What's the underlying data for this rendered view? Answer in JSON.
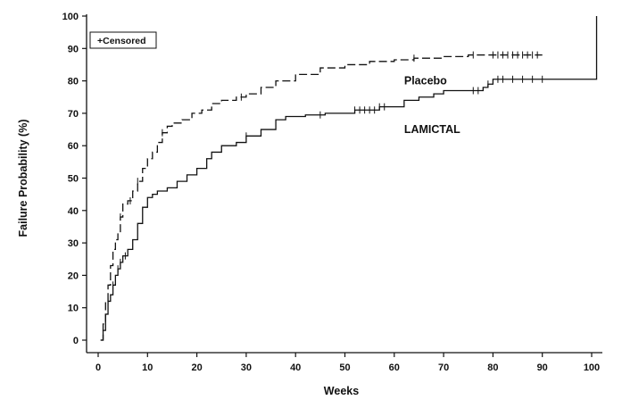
{
  "chart_data": {
    "type": "line",
    "title": "",
    "xlabel": "Weeks",
    "ylabel": "Failure Probability (%)",
    "xlim": [
      0,
      100
    ],
    "ylim": [
      0,
      100
    ],
    "x_ticks": [
      0,
      10,
      20,
      30,
      40,
      50,
      60,
      70,
      80,
      90,
      100
    ],
    "y_ticks": [
      0,
      10,
      20,
      30,
      40,
      50,
      60,
      70,
      80,
      90,
      100
    ],
    "grid": false,
    "legend": {
      "text": "+Censored",
      "placement": "top-left"
    },
    "series": [
      {
        "name": "Placebo",
        "line_style": "dashed",
        "step": true,
        "points": [
          [
            0.5,
            0
          ],
          [
            1,
            5
          ],
          [
            1.5,
            12
          ],
          [
            2,
            17
          ],
          [
            2.5,
            23
          ],
          [
            3,
            28
          ],
          [
            3.5,
            31
          ],
          [
            4,
            33
          ],
          [
            4.5,
            38
          ],
          [
            5,
            42
          ],
          [
            6,
            43
          ],
          [
            7,
            46
          ],
          [
            8,
            49
          ],
          [
            9,
            53
          ],
          [
            10,
            56
          ],
          [
            11,
            58
          ],
          [
            12,
            61
          ],
          [
            13,
            64
          ],
          [
            14,
            66
          ],
          [
            15,
            67
          ],
          [
            17,
            68
          ],
          [
            19,
            70
          ],
          [
            21,
            71
          ],
          [
            23,
            73
          ],
          [
            25,
            74
          ],
          [
            28,
            75
          ],
          [
            30,
            76
          ],
          [
            33,
            78
          ],
          [
            36,
            80
          ],
          [
            40,
            82
          ],
          [
            45,
            84
          ],
          [
            50,
            85
          ],
          [
            55,
            86
          ],
          [
            60,
            86.5
          ],
          [
            64,
            87
          ],
          [
            70,
            87.5
          ],
          [
            75,
            88
          ],
          [
            90,
            88
          ]
        ],
        "censored_x": [
          4.5,
          6.5,
          8,
          13,
          29,
          64,
          76,
          80,
          81,
          82,
          83,
          84,
          85,
          86,
          87,
          88,
          89
        ],
        "label_pos": {
          "x": 62,
          "y": 80
        }
      },
      {
        "name": "LAMICTAL",
        "line_style": "solid",
        "step": true,
        "points": [
          [
            0.5,
            0
          ],
          [
            1,
            3
          ],
          [
            1.5,
            8
          ],
          [
            2,
            12
          ],
          [
            2.5,
            14
          ],
          [
            3,
            17
          ],
          [
            3.5,
            20
          ],
          [
            4,
            22
          ],
          [
            4.5,
            24
          ],
          [
            5,
            26
          ],
          [
            6,
            28
          ],
          [
            7,
            31
          ],
          [
            8,
            36
          ],
          [
            9,
            41
          ],
          [
            10,
            44
          ],
          [
            11,
            45
          ],
          [
            12,
            46
          ],
          [
            14,
            47
          ],
          [
            16,
            49
          ],
          [
            18,
            51
          ],
          [
            20,
            53
          ],
          [
            22,
            56
          ],
          [
            23,
            58
          ],
          [
            25,
            60
          ],
          [
            28,
            61
          ],
          [
            30,
            63
          ],
          [
            33,
            65
          ],
          [
            36,
            68
          ],
          [
            38,
            69
          ],
          [
            42,
            69.5
          ],
          [
            46,
            70
          ],
          [
            52,
            71
          ],
          [
            57,
            72
          ],
          [
            62,
            74
          ],
          [
            65,
            75
          ],
          [
            68,
            76
          ],
          [
            70,
            77
          ],
          [
            78,
            78
          ],
          [
            79,
            79
          ],
          [
            80,
            80.5
          ],
          [
            100,
            80.5
          ],
          [
            101,
            100
          ]
        ],
        "censored_x": [
          2,
          3,
          4,
          4.5,
          5.5,
          30,
          45,
          52,
          53,
          54,
          55,
          56,
          57,
          58,
          76,
          77,
          79,
          81,
          82,
          84,
          86,
          88,
          90
        ],
        "label_pos": {
          "x": 62,
          "y": 65
        }
      }
    ]
  }
}
